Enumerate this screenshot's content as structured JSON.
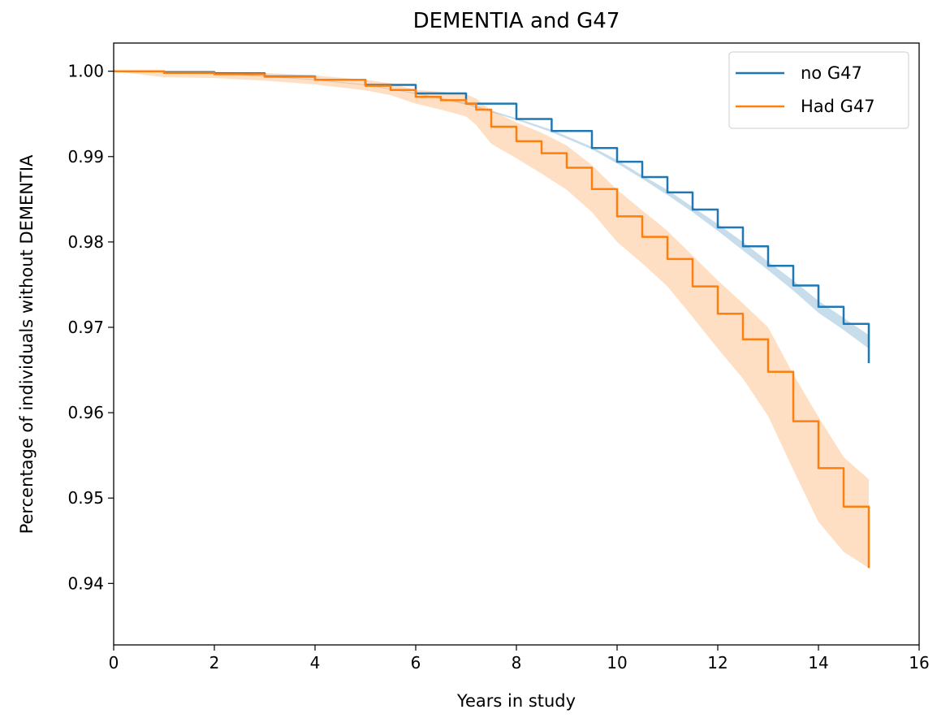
{
  "chart_data": {
    "type": "line",
    "title": "DEMENTIA and G47",
    "xlabel": "Years in study",
    "ylabel": "Percentage of individuals without DEMENTIA",
    "xlim": [
      0,
      16
    ],
    "ylim": [
      0.9328,
      1.0033
    ],
    "x_ticks": [
      0,
      2,
      4,
      6,
      8,
      10,
      12,
      14,
      16
    ],
    "x_tick_labels": [
      "0",
      "2",
      "4",
      "6",
      "8",
      "10",
      "12",
      "14",
      "16"
    ],
    "y_ticks": [
      0.94,
      0.95,
      0.96,
      0.97,
      0.98,
      0.99,
      1.0
    ],
    "y_tick_labels": [
      "0.94",
      "0.95",
      "0.96",
      "0.97",
      "0.98",
      "0.99",
      "1.00"
    ],
    "grid": false,
    "legend_position": "upper right",
    "series": [
      {
        "name": "no G47",
        "color": "#1f77b4",
        "x": [
          0,
          1,
          2,
          3,
          4,
          5,
          6,
          7,
          8,
          8.7,
          9.5,
          10,
          10.5,
          11,
          11.5,
          12,
          12.5,
          13,
          13.5,
          14,
          14.5,
          15
        ],
        "y": [
          1.0,
          0.9999,
          0.99975,
          0.9994,
          0.999,
          0.9984,
          0.9974,
          0.9962,
          0.9944,
          0.993,
          0.991,
          0.9894,
          0.9876,
          0.9858,
          0.9838,
          0.9817,
          0.9795,
          0.9772,
          0.9749,
          0.9724,
          0.9704,
          0.9683
        ],
        "ci_lower": [
          1.0,
          0.9999,
          0.9997,
          0.99935,
          0.99895,
          0.99835,
          0.99735,
          0.9961,
          0.9943,
          0.99285,
          0.99085,
          0.9892,
          0.9874,
          0.9855,
          0.9835,
          0.9813,
          0.979,
          0.9767,
          0.9743,
          0.9717,
          0.9697,
          0.9675
        ],
        "ci_upper": [
          1.0,
          0.9999,
          0.9998,
          0.99945,
          0.99905,
          0.99845,
          0.99745,
          0.9963,
          0.9945,
          0.99315,
          0.99115,
          0.9896,
          0.9878,
          0.9861,
          0.9841,
          0.9821,
          0.98,
          0.9777,
          0.9755,
          0.9731,
          0.9711,
          0.9691
        ],
        "end_drop": 0.9658
      },
      {
        "name": "Had G47",
        "color": "#ff7f0e",
        "x": [
          0,
          1,
          2,
          3,
          4,
          5,
          5.5,
          6,
          6.5,
          7,
          7.2,
          7.5,
          8,
          8.5,
          9,
          9.5,
          10,
          10.5,
          11,
          11.5,
          12,
          12.5,
          13,
          13.5,
          14,
          14.5,
          15
        ],
        "y": [
          1.0,
          0.9998,
          0.99965,
          0.99935,
          0.999,
          0.9983,
          0.9978,
          0.997,
          0.9966,
          0.9962,
          0.9955,
          0.9935,
          0.9918,
          0.9904,
          0.9887,
          0.9862,
          0.983,
          0.9806,
          0.978,
          0.9748,
          0.9716,
          0.9686,
          0.9648,
          0.959,
          0.9535,
          0.949,
          0.9472
        ],
        "ci_lower": [
          1.0,
          0.9993,
          0.9992,
          0.9989,
          0.99845,
          0.99775,
          0.9972,
          0.9962,
          0.9955,
          0.9947,
          0.9937,
          0.9915,
          0.9898,
          0.988,
          0.9861,
          0.9835,
          0.98,
          0.9775,
          0.9748,
          0.9712,
          0.9675,
          0.964,
          0.9596,
          0.9533,
          0.9472,
          0.9437,
          0.9418
        ],
        "ci_upper": [
          1.0,
          1.0,
          0.99995,
          0.9998,
          0.9995,
          0.999,
          0.9986,
          0.9978,
          0.9976,
          0.9973,
          0.9968,
          0.9954,
          0.994,
          0.9928,
          0.9913,
          0.989,
          0.9861,
          0.9837,
          0.9813,
          0.9784,
          0.9755,
          0.9728,
          0.97,
          0.9645,
          0.9595,
          0.9548,
          0.9522
        ],
        "end_drop": 0.9418
      }
    ]
  }
}
